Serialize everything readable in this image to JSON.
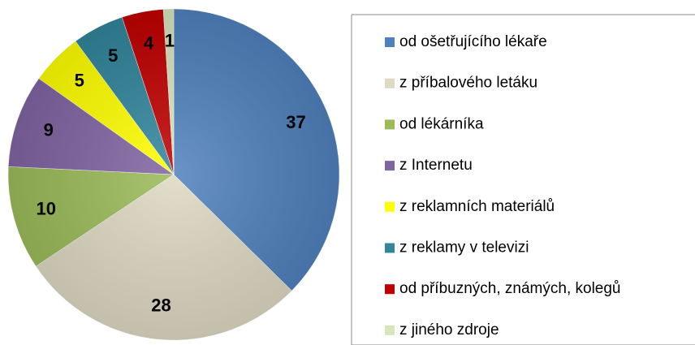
{
  "chart_data": {
    "type": "pie",
    "categories": [
      "od ošetřujícího lékaře",
      "z příbalového letáku",
      "od lékárníka",
      "z Internetu",
      "z reklamních materiálů",
      "z reklamy v televizi",
      "od příbuzných, známých, kolegů",
      "z jiného zdroje"
    ],
    "values": [
      37,
      28,
      10,
      9,
      5,
      5,
      4,
      1
    ],
    "colors": [
      "#4f81bd",
      "#ddd9c3",
      "#9bbb59",
      "#8064a2",
      "#ffff00",
      "#31859c",
      "#c00000",
      "#d7e4bc"
    ],
    "legend": "right"
  }
}
